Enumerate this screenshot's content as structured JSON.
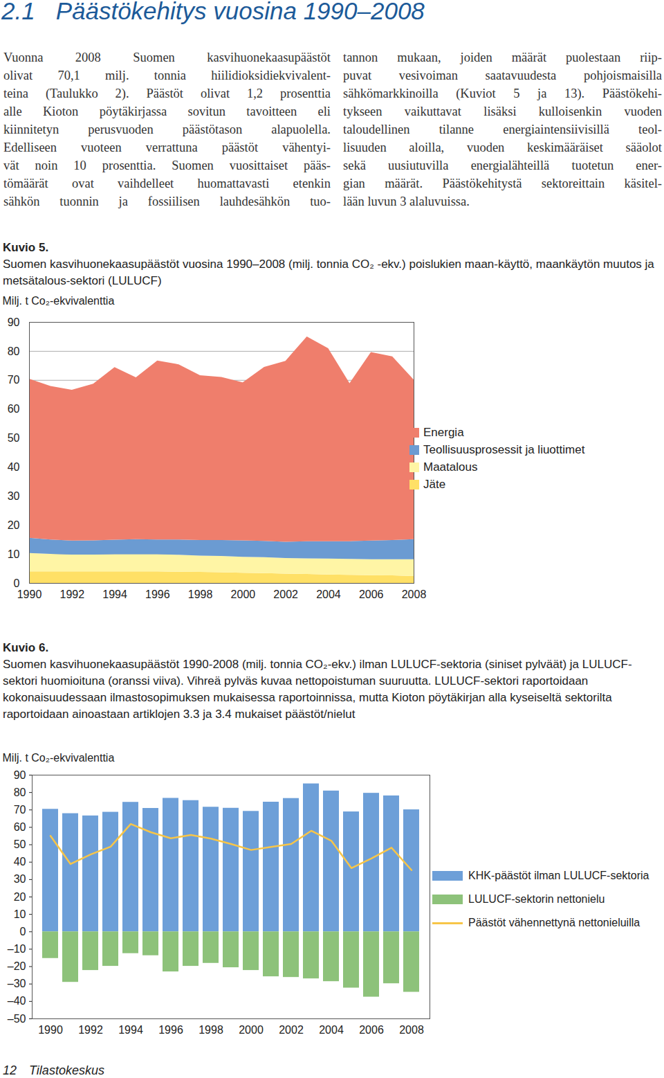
{
  "document": {
    "heading": {
      "number": "2.1",
      "title": "Päästökehitys vuosina 1990–2008"
    },
    "columns": [
      [
        "Vuonna 2008 Suomen kasvihuonekaasupäästöt",
        "olivat 70,1 milj. tonnia hiilidioksidiekvivalent-",
        "teina (Taulukko 2). Päästöt olivat 1,2 prosenttia",
        "alle Kioton pöytäkirjassa sovitun tavoitteen eli",
        "kiinnitetyn perusvuoden päästötason alapuolella.",
        "Edelliseen vuoteen verrattuna päästöt vähentyi-",
        "vät noin 10 prosenttia. Suomen vuosittaiset pääs-",
        "tömäärät ovat vaihdelleet huomattavasti etenkin",
        "sähkön tuonnin ja fossiilisen lauhdesähkön tuo-"
      ],
      [
        "tannon mukaan, joiden määrät puolestaan riip-",
        "puvat vesivoiman saatavuudesta pohjoismaisilla",
        "sähkömarkkinoilla (Kuviot 5 ja 13). Päästökehi-",
        "tykseen vaikuttavat lisäksi kulloisenkin vuoden",
        "taloudellinen tilanne energiaintensiivisillä teol-",
        "lisuuden aloilla, vuoden keskimääräiset sääolot",
        "sekä uusiutuvilla energialähteillä tuotetun ener-",
        "gian määrät. Päästökehitystä sektoreittain käsitel-",
        "lään luvun 3 alaluvuissa."
      ]
    ],
    "figures": [
      {
        "label": "Kuvio 5.",
        "caption": "Suomen kasvihuonekaasupäästöt vuosina 1990–2008 (milj. tonnia CO₂ -ekv.) poislukien maan-käyttö, maankäytön muutos ja metsätalous-sektori (LULUCF)"
      },
      {
        "label": "Kuvio 6.",
        "caption": "Suomen kasvihuonekaasupäästöt 1990-2008 (milj. tonnia CO₂-ekv.) ilman LULUCF-sektoria (siniset pylväät) ja LULUCF-sektori huomioituna (oranssi viiva). Vihreä pylväs kuvaa nettopoistuman suuruutta. LULUCF-sektori raportoidaan kokonaisuudessaan ilmastosopimuksen mukaisessa raportoinnissa, mutta Kioton pöytäkirjan alla kyseiseltä sektorilta raportoidaan ainoastaan artiklojen 3.3 ja 3.4 mukaiset päästöt/nielut"
      }
    ],
    "footer": {
      "page": 12,
      "publisher": "Tilastokeskus"
    }
  },
  "chart_data": [
    {
      "type": "area",
      "stacked": true,
      "y_label": "Milj. t Co₂-ekvivalenttia",
      "x": [
        1990,
        1991,
        1992,
        1993,
        1994,
        1995,
        1996,
        1997,
        1998,
        1999,
        2000,
        2001,
        2002,
        2003,
        2004,
        2005,
        2006,
        2007,
        2008
      ],
      "xlim": [
        1990,
        2008
      ],
      "xticks": [
        1990,
        1992,
        1994,
        1996,
        1998,
        2000,
        2002,
        2004,
        2006,
        2008
      ],
      "ylim": [
        0,
        90
      ],
      "yticks": [
        0,
        10,
        20,
        30,
        40,
        50,
        60,
        70,
        80,
        90
      ],
      "grid": true,
      "legend": "right",
      "series": [
        {
          "name": "Energia",
          "color": "#ef7e6c",
          "values": [
            54.8,
            52.9,
            52.0,
            54.0,
            59.5,
            55.8,
            61.7,
            60.4,
            56.8,
            56.2,
            54.5,
            60.0,
            62.4,
            70.6,
            66.5,
            54.5,
            65.0,
            63.3,
            55.0
          ]
        },
        {
          "name": "Teollisuusprosessit ja liuottimet",
          "color": "#6b9bd2",
          "values": [
            5.3,
            5.0,
            4.8,
            4.9,
            5.0,
            5.2,
            5.1,
            5.3,
            5.4,
            5.5,
            5.7,
            5.6,
            5.6,
            5.9,
            6.0,
            6.1,
            6.4,
            6.6,
            6.9
          ]
        },
        {
          "name": "Maatalous",
          "color": "#fff5a5",
          "values": [
            6.3,
            6.0,
            5.8,
            5.8,
            5.9,
            5.9,
            5.9,
            5.8,
            5.6,
            5.6,
            5.5,
            5.5,
            5.4,
            5.4,
            5.5,
            5.5,
            5.5,
            5.6,
            5.8
          ]
        },
        {
          "name": "Jäte",
          "color": "#ffe066",
          "values": [
            4.0,
            4.0,
            4.0,
            4.0,
            4.0,
            4.0,
            4.0,
            3.9,
            3.8,
            3.7,
            3.5,
            3.4,
            3.2,
            3.1,
            2.9,
            2.8,
            2.7,
            2.6,
            2.4
          ]
        }
      ]
    },
    {
      "type": "bar",
      "y_label": "Milj. t Co₂-ekvivalenttia",
      "categories": [
        "1990",
        null,
        "1992",
        null,
        "1994",
        null,
        "1996",
        null,
        "1998",
        null,
        "2000",
        null,
        "2002",
        null,
        "2004",
        null,
        "2006",
        null,
        "2008"
      ],
      "ylim": [
        -50,
        90
      ],
      "yticks": [
        {
          "value": -50,
          "label": "–50"
        },
        {
          "value": -40,
          "label": "–40"
        },
        {
          "value": -30,
          "label": "–30"
        },
        {
          "value": -20,
          "label": "–20"
        },
        {
          "value": -10,
          "label": "–10"
        },
        0,
        10,
        20,
        30,
        40,
        50,
        60,
        70,
        80,
        90
      ],
      "grid": false,
      "legend": "right",
      "series": [
        {
          "name": "KHK-päästöt ilman LULUCF-sektoria",
          "type": "bar",
          "color": "#6d9fd8",
          "values": [
            70.4,
            67.9,
            66.6,
            68.7,
            74.4,
            70.9,
            76.7,
            75.4,
            71.6,
            71.0,
            69.2,
            74.5,
            76.6,
            85.0,
            80.9,
            68.9,
            79.6,
            78.1,
            70.1
          ]
        },
        {
          "name": "LULUCF-sektorin nettonielu",
          "type": "bar",
          "color": "#8dc27a",
          "values": [
            -15.3,
            -29.0,
            -22.2,
            -19.8,
            -12.5,
            -13.7,
            -23.0,
            -19.8,
            -18.1,
            -20.6,
            -22.2,
            -25.8,
            -26.2,
            -27.0,
            -28.6,
            -32.3,
            -37.5,
            -29.8,
            -34.7
          ]
        },
        {
          "name": "Päästöt vähennettynä nettonieluilla",
          "type": "line",
          "color": "#f7c548",
          "values": [
            55.1,
            38.9,
            44.4,
            48.9,
            61.9,
            57.2,
            53.7,
            55.6,
            53.5,
            50.4,
            47.0,
            48.7,
            50.4,
            58.0,
            52.3,
            36.6,
            42.1,
            48.3,
            35.4
          ]
        }
      ]
    }
  ]
}
